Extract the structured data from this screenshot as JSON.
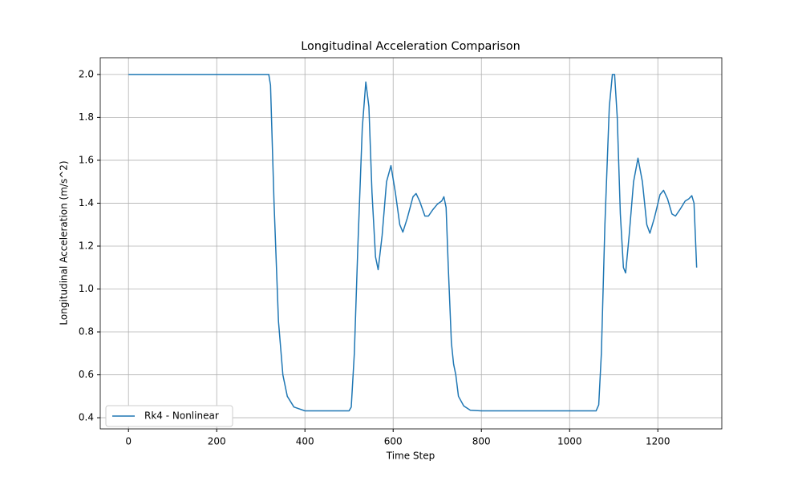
{
  "chart_data": {
    "type": "line",
    "title": "Longitudinal Acceleration Comparison",
    "x_label": "Time Step",
    "y_label": "Longitudinal Acceleration (m/s^2)",
    "x": [
      0,
      318,
      322,
      330,
      340,
      350,
      360,
      375,
      400,
      500,
      505,
      512,
      520,
      530,
      538,
      545,
      552,
      560,
      566,
      575,
      585,
      595,
      605,
      615,
      622,
      632,
      645,
      652,
      660,
      672,
      680,
      690,
      700,
      710,
      715,
      720,
      725,
      732,
      737,
      742,
      748,
      760,
      775,
      800,
      1060,
      1066,
      1072,
      1080,
      1090,
      1097,
      1102,
      1108,
      1115,
      1122,
      1127,
      1135,
      1145,
      1155,
      1165,
      1175,
      1182,
      1192,
      1205,
      1213,
      1222,
      1232,
      1240,
      1250,
      1262,
      1270,
      1277,
      1282,
      1285,
      1288
    ],
    "series": [
      {
        "name": "Rk4 - Nonlinear",
        "color": "#1f77b4",
        "values": [
          2.0,
          2.0,
          1.95,
          1.4,
          0.85,
          0.6,
          0.5,
          0.45,
          0.432,
          0.432,
          0.45,
          0.7,
          1.2,
          1.75,
          1.965,
          1.85,
          1.45,
          1.15,
          1.09,
          1.25,
          1.5,
          1.575,
          1.45,
          1.3,
          1.265,
          1.33,
          1.43,
          1.445,
          1.41,
          1.34,
          1.34,
          1.37,
          1.395,
          1.41,
          1.43,
          1.38,
          1.1,
          0.75,
          0.65,
          0.6,
          0.5,
          0.455,
          0.435,
          0.432,
          0.432,
          0.46,
          0.7,
          1.3,
          1.85,
          2.0,
          2.0,
          1.8,
          1.35,
          1.1,
          1.075,
          1.25,
          1.5,
          1.61,
          1.5,
          1.3,
          1.26,
          1.33,
          1.44,
          1.46,
          1.42,
          1.35,
          1.34,
          1.37,
          1.41,
          1.42,
          1.435,
          1.4,
          1.25,
          1.1
        ]
      }
    ],
    "xlim": [
      -64,
      1345
    ],
    "xticks": [
      0,
      200,
      400,
      600,
      800,
      1000,
      1200
    ],
    "ylim": [
      0.348,
      2.078
    ],
    "yticks": [
      {
        "value": 0.4,
        "label": "0.4"
      },
      {
        "value": 0.6,
        "label": "0.6"
      },
      {
        "value": 0.8,
        "label": "0.8"
      },
      {
        "value": 1.0,
        "label": "1.0"
      },
      {
        "value": 1.2,
        "label": "1.2"
      },
      {
        "value": 1.4,
        "label": "1.4"
      },
      {
        "value": 1.6,
        "label": "1.6"
      },
      {
        "value": 1.8,
        "label": "1.8"
      },
      {
        "value": 2.0,
        "label": "2.0"
      }
    ],
    "grid": true,
    "legend": "lower left"
  }
}
